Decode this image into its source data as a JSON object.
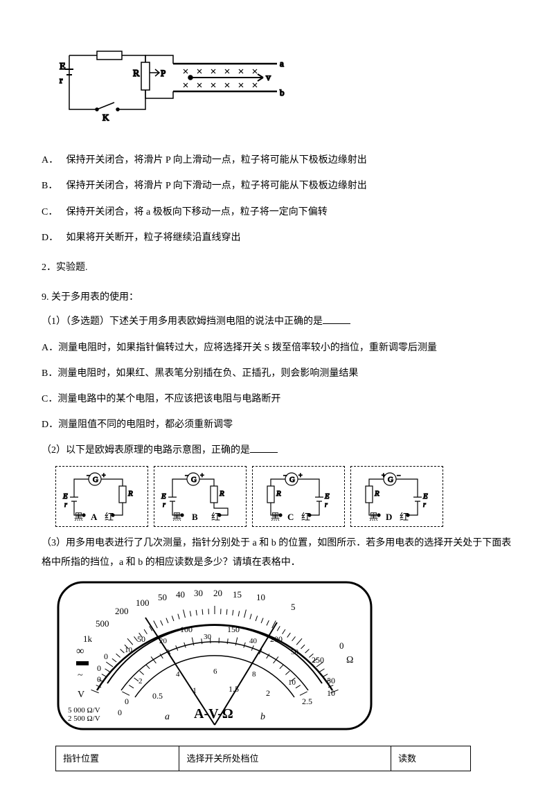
{
  "q8": {
    "circuit": {
      "E_label": "E",
      "r_label": "r",
      "K_label": "K",
      "R_label": "R",
      "P_label": "P",
      "v_label": "v",
      "a_label": "a",
      "b_label": "b"
    },
    "options": {
      "A": {
        "label": "A．",
        "text": "保持开关闭合，将滑片 P 向上滑动一点，粒子将可能从下极板边缘射出"
      },
      "B": {
        "label": "B．",
        "text": "保持开关闭合，将滑片 P 向下滑动一点，粒子将可能从下极板边缘射出"
      },
      "C": {
        "label": "C．",
        "text": "保持开关闭合，将 a 极板向下移动一点，粒子将一定向下偏转"
      },
      "D": {
        "label": "D．",
        "text": "如果将开关断开，粒子将继续沿直线穿出"
      }
    }
  },
  "section2": {
    "heading": "2．实验题."
  },
  "q9": {
    "title": "9. 关于多用表的使用：",
    "part1": {
      "prompt": "（1）（多选题）下述关于用多用表欧姆挡测电阻的说法中正确的是",
      "options": {
        "A": {
          "label": "A．",
          "text": "测量电阻时，如果指针偏转过大，应将选择开关 S 拨至倍率较小的挡位，重新调零后测量"
        },
        "B": {
          "label": "B．",
          "text": "测量电阻时，如果红、黑表笔分别插在负、正插孔，则会影响测量结果"
        },
        "C": {
          "label": "C．",
          "text": "测量电路中的某个电阻，不应该把该电阻与电路断开"
        },
        "D": {
          "label": "D．",
          "text": "测量阻值不同的电阻时，都必须重新调零"
        }
      }
    },
    "part2": {
      "prompt": "（2）以下是欧姆表原理的电路示意图，正确的是",
      "boxes": {
        "A": {
          "G_neg": "−",
          "G_sym": "G",
          "G_pos": "+",
          "E": "E",
          "r": "r",
          "R": "R",
          "black": "黑",
          "red": "红",
          "label": "A"
        },
        "B": {
          "G_neg": "−",
          "G_sym": "G",
          "G_pos": "+",
          "E": "E",
          "r": "r",
          "R": "R",
          "black": "黑",
          "red": "红",
          "label": "B"
        },
        "C": {
          "G_neg": "−",
          "G_sym": "G",
          "G_pos": "+",
          "E": "E",
          "r": "r",
          "R": "R",
          "black": "黑",
          "red": "红",
          "label": "C"
        },
        "D": {
          "G_neg": "+",
          "G_sym": "G",
          "G_pos": "−",
          "E": "E",
          "r": "r",
          "R": "R",
          "black": "黑",
          "red": "红",
          "label": "D"
        }
      }
    },
    "part3": {
      "prompt": "（3）用多用电表进行了几次测量，指针分别处于 a 和 b 的位置，如图所示．若多用电表的选择开关处于下面表格中所指的挡位，a 和 b 的相应读数是多少？请填在表格中．",
      "meter": {
        "ohm_scale": [
          "1k",
          "500",
          "200",
          "100",
          "50",
          "40",
          "30",
          "20",
          "15",
          "10",
          "5",
          "0"
        ],
        "ohm_unit": "Ω",
        "mid_scale": [
          "0",
          "50",
          "100",
          "150",
          "200",
          "250"
        ],
        "mid_scale_minor": [
          "10",
          "20",
          "30",
          "40",
          "50"
        ],
        "volt_scale": [
          "0",
          "0.5",
          "1",
          "1.5",
          "2",
          "2.5"
        ],
        "volt_minor": [
          "2",
          "4",
          "6",
          "8",
          "10"
        ],
        "left_labels": [
          "∞",
          "~",
          "V",
          "5 000 Ω/V",
          "2 500 Ω/V"
        ],
        "right_labels": [
          "50",
          "10"
        ],
        "center": "A-V-Ω",
        "a": "a",
        "b": "b",
        "left_zero": "0"
      },
      "table": {
        "h1": "指针位置",
        "h2": "选择开关所处档位",
        "h3": "读数"
      }
    }
  }
}
